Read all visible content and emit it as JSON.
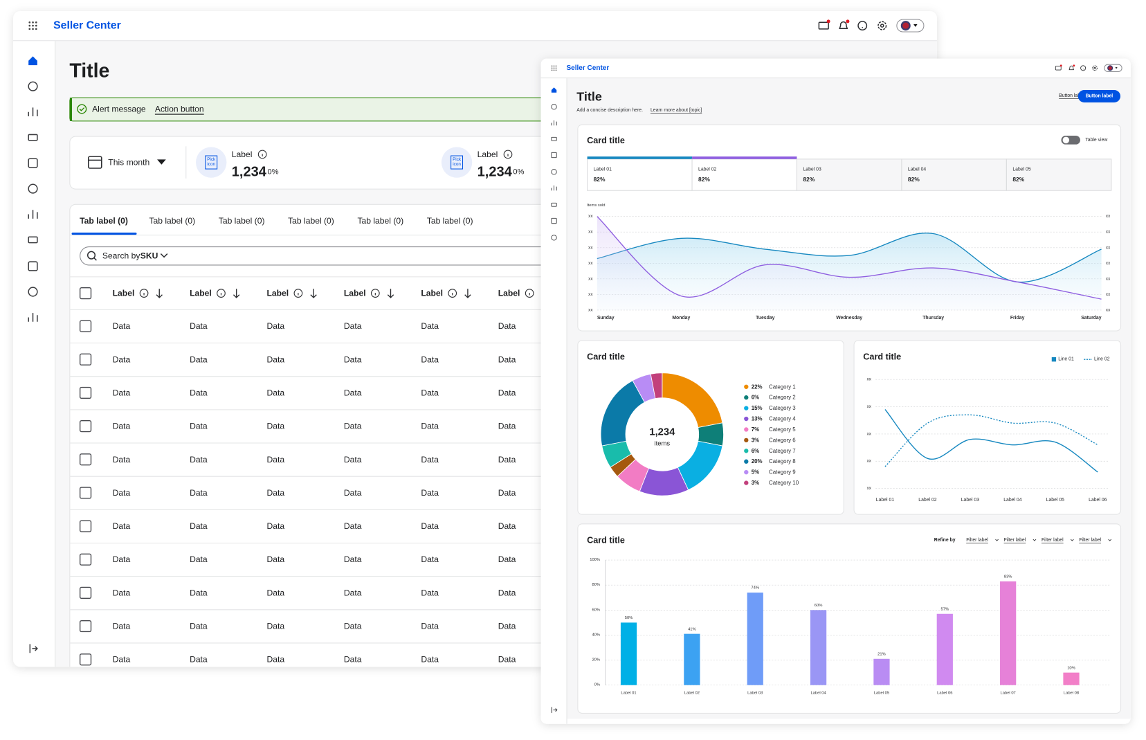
{
  "back_window": {
    "brand": "Seller Center",
    "title": "Title",
    "alert": {
      "message": "Alert message",
      "action": "Action button"
    },
    "period": "This month",
    "metrics": [
      {
        "icon_lines": [
          "Pick",
          "icon"
        ],
        "label": "Label",
        "value": "1,234",
        "change": "0%"
      },
      {
        "icon_lines": [
          "Pick",
          "icon"
        ],
        "label": "Label",
        "value": "1,234",
        "change": "0%"
      }
    ],
    "tabs": [
      "Tab label (0)",
      "Tab label (0)",
      "Tab label (0)",
      "Tab label (0)",
      "Tab label (0)",
      "Tab label (0)"
    ],
    "search": {
      "label": "Search by",
      "field": "SKU"
    },
    "table": {
      "headers": [
        "Label",
        "Label",
        "Label",
        "Label",
        "Label",
        "Label"
      ],
      "rows": [
        [
          "Data",
          "Data",
          "Data",
          "Data",
          "Data",
          "Data"
        ],
        [
          "Data",
          "Data",
          "Data",
          "Data",
          "Data",
          "Data"
        ],
        [
          "Data",
          "Data",
          "Data",
          "Data",
          "Data",
          "Data"
        ],
        [
          "Data",
          "Data",
          "Data",
          "Data",
          "Data",
          "Data"
        ],
        [
          "Data",
          "Data",
          "Data",
          "Data",
          "Data",
          "Data"
        ],
        [
          "Data",
          "Data",
          "Data",
          "Data",
          "Data",
          "Data"
        ],
        [
          "Data",
          "Data",
          "Data",
          "Data",
          "Data",
          "Data"
        ],
        [
          "Data",
          "Data",
          "Data",
          "Data",
          "Data",
          "Data"
        ],
        [
          "Data",
          "Data",
          "Data",
          "Data",
          "Data",
          "Data"
        ],
        [
          "Data",
          "Data",
          "Data",
          "Data",
          "Data",
          "Data"
        ],
        [
          "Data",
          "Data",
          "Data",
          "Data",
          "Data",
          "Data"
        ]
      ]
    }
  },
  "front_window": {
    "brand": "Seller Center",
    "title": "Title",
    "description": "Add a concise description here.",
    "link": "Learn more about [topic]",
    "secondary_button": "Button label",
    "primary_button": "Button label",
    "trend_card": {
      "title": "Card title",
      "toggle": "Table view",
      "kpis": [
        {
          "label": "Label 01",
          "value": "82%"
        },
        {
          "label": "Label 02",
          "value": "82%"
        },
        {
          "label": "Label 03",
          "value": "82%"
        },
        {
          "label": "Label 04",
          "value": "82%"
        },
        {
          "label": "Label 05",
          "value": "82%"
        }
      ],
      "chart": {
        "type": "line",
        "y_label": "Items sold",
        "categories": [
          "Sunday",
          "Monday",
          "Tuesday",
          "Wednesday",
          "Thursday",
          "Friday",
          "Saturday"
        ],
        "ylim": [
          0,
          6
        ],
        "yticks": [
          {
            "value": 0,
            "label": "xx"
          },
          {
            "value": 1,
            "label": "xx"
          },
          {
            "value": 2,
            "label": "xx"
          },
          {
            "value": 3,
            "label": "xx"
          },
          {
            "value": 4,
            "label": "xx"
          },
          {
            "value": 5,
            "label": "xx"
          },
          {
            "value": 6,
            "label": "xx"
          }
        ],
        "grid": true,
        "series": [
          {
            "color": "#1688c0",
            "values": [
              3.3,
              4.6,
              3.9,
              3.5,
              4.9,
              1.8,
              3.9
            ]
          },
          {
            "color": "#8f5fe0",
            "values": [
              6.0,
              0.9,
              2.9,
              2.1,
              2.7,
              1.8,
              0.7
            ]
          }
        ]
      }
    },
    "mix_card": {
      "title": "Card title",
      "chart": {
        "type": "pie",
        "center_value": "1,234",
        "center_label": "items",
        "categories": [
          "Category 1",
          "Category 2",
          "Category 3",
          "Category 4",
          "Category 5",
          "Category 6",
          "Category 7",
          "Category 8",
          "Category 9",
          "Category 10"
        ],
        "values": [
          22,
          6,
          15,
          13,
          7,
          3,
          6,
          20,
          5,
          3
        ],
        "value_labels": [
          "22%",
          "6%",
          "15%",
          "13%",
          "7%",
          "3%",
          "6%",
          "20%",
          "5%",
          "3%"
        ],
        "colors": [
          "#ee8c00",
          "#0e7f78",
          "#0aafe2",
          "#8a55d6",
          "#f27cc4",
          "#a5590f",
          "#19bcab",
          "#0b7aa8",
          "#b88cf5",
          "#c2407c"
        ]
      }
    },
    "lines_card": {
      "title": "Card title",
      "chart": {
        "type": "line",
        "categories": [
          "Label 01",
          "Label 02",
          "Label 03",
          "Label 04",
          "Label 05",
          "Label 06"
        ],
        "ylim": [
          0,
          4
        ],
        "yticks": [
          {
            "value": 0,
            "label": "xx"
          },
          {
            "value": 1,
            "label": "xx"
          },
          {
            "value": 2,
            "label": "xx"
          },
          {
            "value": 3,
            "label": "xx"
          },
          {
            "value": 4,
            "label": "xx"
          }
        ],
        "grid": true,
        "series": [
          {
            "name": "Line 01",
            "color": "#1688c0",
            "style": "solid",
            "values": [
              2.9,
              1.1,
              1.8,
              1.6,
              1.7,
              0.6
            ]
          },
          {
            "name": "Line 02",
            "color": "#1688c0",
            "style": "dotted",
            "values": [
              0.8,
              2.4,
              2.7,
              2.4,
              2.4,
              1.6
            ]
          }
        ]
      }
    },
    "bar_card": {
      "title": "Card title",
      "refine": "Refine by",
      "filters": [
        "Filter label",
        "Filter label",
        "Filter label",
        "Filter label"
      ],
      "chart": {
        "type": "bar",
        "categories": [
          "Label 01",
          "Label 02",
          "Label 03",
          "Label 04",
          "Label 05",
          "Label 06",
          "Label 07",
          "Label 08"
        ],
        "values": [
          50,
          41,
          74,
          60,
          21,
          57,
          83,
          10
        ],
        "value_labels": [
          "50%",
          "41%",
          "74%",
          "60%",
          "21%",
          "57%",
          "83%",
          "10%"
        ],
        "colors": [
          "#00b0e6",
          "#3ca2f2",
          "#6f9cf8",
          "#9a96f5",
          "#b98cf3",
          "#d08af0",
          "#e681d8",
          "#f27fc8"
        ],
        "ylim": [
          0,
          100
        ],
        "yticks": [
          {
            "value": 0,
            "label": "0%"
          },
          {
            "value": 20,
            "label": "20%"
          },
          {
            "value": 40,
            "label": "40%"
          },
          {
            "value": 60,
            "label": "60%"
          },
          {
            "value": 80,
            "label": "80%"
          },
          {
            "value": 100,
            "label": "100%"
          }
        ],
        "grid": true
      }
    }
  }
}
